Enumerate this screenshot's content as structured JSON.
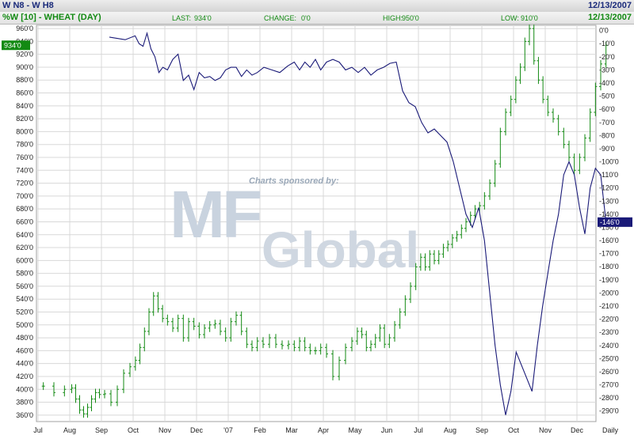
{
  "header": {
    "title": "W N8 - W H8",
    "date": "12/13/2007",
    "subtitle": "%W [10] - WHEAT (DAY)",
    "last_label": "LAST:",
    "last_value": "934'0",
    "change_label": "CHANGE:",
    "change_value": "0'0",
    "high_label": "HIGH:",
    "high_value": "950'0",
    "low_label": "LOW:",
    "low_value": "910'0",
    "date2": "12/13/2007"
  },
  "watermark": {
    "sponsored": "Charts sponsored by:",
    "logo_big": "MF",
    "logo_word": "Global"
  },
  "colors": {
    "price": "#138a13",
    "spread": "#1a1a78",
    "grid": "#d8d8d8",
    "badge_green": "#138a13",
    "badge_navy": "#1a1a78"
  },
  "chart_data": {
    "type": "line",
    "x_ticks": [
      "Jul",
      "Aug",
      "Sep",
      "Oct",
      "Nov",
      "Dec",
      "'07",
      "Feb",
      "Mar",
      "Apr",
      "May",
      "Jun",
      "Jul",
      "Aug",
      "Sep",
      "Oct",
      "Nov",
      "Dec",
      "Daily"
    ],
    "left_axis": {
      "ylim": [
        350,
        965
      ],
      "ticks": [
        "960'0",
        "940'0",
        "920'0",
        "900'0",
        "880'0",
        "860'0",
        "840'0",
        "820'0",
        "800'0",
        "780'0",
        "760'0",
        "740'0",
        "720'0",
        "700'0",
        "680'0",
        "660'0",
        "640'0",
        "620'0",
        "600'0",
        "580'0",
        "560'0",
        "540'0",
        "520'0",
        "500'0",
        "480'0",
        "460'0",
        "440'0",
        "420'0",
        "400'0",
        "380'0",
        "360'0"
      ],
      "last_value_label": "934'0"
    },
    "right_axis": {
      "ylim": [
        -298,
        4
      ],
      "ticks": [
        "0'0",
        "-10'0",
        "-20'0",
        "-30'0",
        "-40'0",
        "-50'0",
        "-60'0",
        "-70'0",
        "-80'0",
        "-90'0",
        "-100'0",
        "-110'0",
        "-120'0",
        "-130'0",
        "-140'0",
        "-150'0",
        "-160'0",
        "-170'0",
        "-180'0",
        "-190'0",
        "-200'0",
        "-210'0",
        "-220'0",
        "-230'0",
        "-240'0",
        "-250'0",
        "-260'0",
        "-270'0",
        "-280'0",
        "-290'0"
      ],
      "last_value_label": "-146'0"
    },
    "series": [
      {
        "style": "bar (OHLC)",
        "axis": "left",
        "points": [
          [
            "Jul",
            405
          ],
          [
            "Jul",
            395
          ],
          [
            "Jul",
            400
          ],
          [
            "Aug",
            402
          ],
          [
            "Aug",
            385
          ],
          [
            "Aug",
            368
          ],
          [
            "Aug",
            362
          ],
          [
            "Aug",
            372
          ],
          [
            "Aug",
            385
          ],
          [
            "Aug",
            395
          ],
          [
            "Aug",
            392
          ],
          [
            "Sep",
            393
          ],
          [
            "Sep",
            380
          ],
          [
            "Sep",
            400
          ],
          [
            "Sep",
            425
          ],
          [
            "Sep",
            435
          ],
          [
            "Oct",
            445
          ],
          [
            "Oct",
            465
          ],
          [
            "Oct",
            490
          ],
          [
            "Oct",
            520
          ],
          [
            "Oct",
            545
          ],
          [
            "Oct",
            525
          ],
          [
            "Oct",
            510
          ],
          [
            "Nov",
            505
          ],
          [
            "Nov",
            495
          ],
          [
            "Nov",
            510
          ],
          [
            "Nov",
            480
          ],
          [
            "Nov",
            505
          ],
          [
            "Nov",
            498
          ],
          [
            "Dec",
            485
          ],
          [
            "Dec",
            495
          ],
          [
            "Dec",
            500
          ],
          [
            "Dec",
            502
          ],
          [
            "Dec",
            490
          ],
          [
            "Dec",
            480
          ],
          [
            "'07",
            505
          ],
          [
            "'07",
            515
          ],
          [
            "'07",
            490
          ],
          [
            "'07",
            470
          ],
          [
            "'07",
            465
          ],
          [
            "'07",
            475
          ],
          [
            "Feb",
            470
          ],
          [
            "Feb",
            480
          ],
          [
            "Feb",
            470
          ],
          [
            "Feb",
            468
          ],
          [
            "Feb",
            470
          ],
          [
            "Mar",
            465
          ],
          [
            "Mar",
            475
          ],
          [
            "Mar",
            465
          ],
          [
            "Mar",
            460
          ],
          [
            "Mar",
            460
          ],
          [
            "Mar",
            465
          ],
          [
            "Apr",
            455
          ],
          [
            "Apr",
            420
          ],
          [
            "Apr",
            445
          ],
          [
            "Apr",
            465
          ],
          [
            "Apr",
            475
          ],
          [
            "May",
            490
          ],
          [
            "May",
            485
          ],
          [
            "May",
            465
          ],
          [
            "May",
            470
          ],
          [
            "May",
            480
          ],
          [
            "May",
            495
          ],
          [
            "May",
            470
          ],
          [
            "Jun",
            480
          ],
          [
            "Jun",
            500
          ],
          [
            "Jun",
            520
          ],
          [
            "Jun",
            540
          ],
          [
            "Jun",
            560
          ],
          [
            "Jun",
            590
          ],
          [
            "Jul",
            605
          ],
          [
            "Jul",
            590
          ],
          [
            "Jul",
            610
          ],
          [
            "Jul",
            600
          ],
          [
            "Jul",
            610
          ],
          [
            "Jul",
            620
          ],
          [
            "Jul",
            625
          ],
          [
            "Aug",
            635
          ],
          [
            "Aug",
            640
          ],
          [
            "Aug",
            650
          ],
          [
            "Aug",
            660
          ],
          [
            "Aug",
            670
          ],
          [
            "Aug",
            680
          ],
          [
            "Aug",
            685
          ],
          [
            "Sep",
            700
          ],
          [
            "Sep",
            720
          ],
          [
            "Sep",
            750
          ],
          [
            "Sep",
            800
          ],
          [
            "Sep",
            830
          ],
          [
            "Sep",
            850
          ],
          [
            "Oct",
            880
          ],
          [
            "Oct",
            900
          ],
          [
            "Oct",
            940
          ],
          [
            "Oct",
            960
          ],
          [
            "Oct",
            910
          ],
          [
            "Oct",
            880
          ],
          [
            "Oct",
            850
          ],
          [
            "Nov",
            830
          ],
          [
            "Nov",
            820
          ],
          [
            "Nov",
            800
          ],
          [
            "Nov",
            780
          ],
          [
            "Nov",
            760
          ],
          [
            "Nov",
            740
          ],
          [
            "Dec",
            760
          ],
          [
            "Dec",
            790
          ],
          [
            "Dec",
            830
          ],
          [
            "Dec",
            870
          ],
          [
            "Dec",
            905
          ],
          [
            "Dec",
            934
          ]
        ]
      },
      {
        "style": "line",
        "axis": "right",
        "points": [
          [
            "Sep",
            -5
          ],
          [
            "Sep",
            -7
          ],
          [
            "Oct",
            -4
          ],
          [
            "Oct",
            -10
          ],
          [
            "Oct",
            -12
          ],
          [
            "Oct",
            -2
          ],
          [
            "Oct",
            -14
          ],
          [
            "Oct",
            -20
          ],
          [
            "Oct",
            -32
          ],
          [
            "Oct",
            -28
          ],
          [
            "Nov",
            -30
          ],
          [
            "Nov",
            -22
          ],
          [
            "Nov",
            -18
          ],
          [
            "Nov",
            -38
          ],
          [
            "Nov",
            -34
          ],
          [
            "Nov",
            -45
          ],
          [
            "Dec",
            -32
          ],
          [
            "Dec",
            -36
          ],
          [
            "Dec",
            -35
          ],
          [
            "Dec",
            -38
          ],
          [
            "Dec",
            -36
          ],
          [
            "Dec",
            -30
          ],
          [
            "'07",
            -28
          ],
          [
            "'07",
            -28
          ],
          [
            "'07",
            -35
          ],
          [
            "'07",
            -30
          ],
          [
            "'07",
            -34
          ],
          [
            "'07",
            -32
          ],
          [
            "Feb",
            -28
          ],
          [
            "Feb",
            -30
          ],
          [
            "Feb",
            -32
          ],
          [
            "Feb",
            -27
          ],
          [
            "Mar",
            -24
          ],
          [
            "Mar",
            -30
          ],
          [
            "Mar",
            -24
          ],
          [
            "Mar",
            -28
          ],
          [
            "Mar",
            -22
          ],
          [
            "Mar",
            -30
          ],
          [
            "Apr",
            -24
          ],
          [
            "Apr",
            -22
          ],
          [
            "Apr",
            -24
          ],
          [
            "Apr",
            -30
          ],
          [
            "Apr",
            -28
          ],
          [
            "May",
            -32
          ],
          [
            "May",
            -28
          ],
          [
            "May",
            -34
          ],
          [
            "May",
            -30
          ],
          [
            "May",
            -28
          ],
          [
            "Jun",
            -25
          ],
          [
            "Jun",
            -24
          ],
          [
            "Jun",
            -46
          ],
          [
            "Jun",
            -55
          ],
          [
            "Jun",
            -58
          ],
          [
            "Jul",
            -70
          ],
          [
            "Jul",
            -78
          ],
          [
            "Jul",
            -75
          ],
          [
            "Jul",
            -80
          ],
          [
            "Jul",
            -85
          ],
          [
            "Aug",
            -100
          ],
          [
            "Aug",
            -120
          ],
          [
            "Aug",
            -140
          ],
          [
            "Aug",
            -150
          ],
          [
            "Aug",
            -135
          ],
          [
            "Sep",
            -160
          ],
          [
            "Sep",
            -200
          ],
          [
            "Sep",
            -240
          ],
          [
            "Sep",
            -270
          ],
          [
            "Sep",
            -293
          ],
          [
            "Sep",
            -275
          ],
          [
            "Oct",
            -245
          ],
          [
            "Oct",
            -255
          ],
          [
            "Oct",
            -265
          ],
          [
            "Oct",
            -275
          ],
          [
            "Oct",
            -240
          ],
          [
            "Oct",
            -210
          ],
          [
            "Nov",
            -185
          ],
          [
            "Nov",
            -160
          ],
          [
            "Nov",
            -140
          ],
          [
            "Nov",
            -110
          ],
          [
            "Nov",
            -100
          ],
          [
            "Nov",
            -110
          ],
          [
            "Dec",
            -135
          ],
          [
            "Dec",
            -155
          ],
          [
            "Dec",
            -120
          ],
          [
            "Dec",
            -105
          ],
          [
            "Dec",
            -110
          ],
          [
            "Dec",
            -146
          ]
        ]
      }
    ],
    "grid": true
  }
}
